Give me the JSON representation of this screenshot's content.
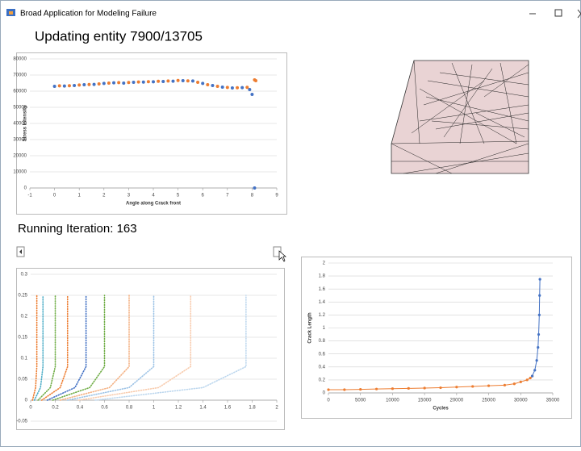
{
  "window": {
    "title": "Broad Application for Modeling Failure"
  },
  "status": "Updating entity 7900/13705",
  "iteration": "Running Iteration: 163",
  "chart_data": [
    {
      "type": "scatter",
      "xlabel": "Angle along Crack front",
      "ylabel": "Stress Intensity",
      "xlim": [
        -1,
        9
      ],
      "xticks": [
        -1,
        0,
        1,
        2,
        3,
        4,
        5,
        6,
        7,
        8,
        9
      ],
      "ylim": [
        0,
        80000
      ],
      "yticks": [
        0,
        10000,
        20000,
        30000,
        40000,
        50000,
        60000,
        70000,
        80000
      ],
      "grid": true,
      "series": [
        {
          "color": "#4472c4",
          "x": [
            0,
            0.4,
            0.8,
            1.2,
            1.6,
            2,
            2.4,
            2.8,
            3.2,
            3.6,
            4,
            4.4,
            4.8,
            5.2,
            5.6,
            6,
            6.4,
            6.8,
            7.2,
            7.6,
            7.9,
            8,
            8.1
          ],
          "values": [
            63000,
            63200,
            63500,
            64000,
            64200,
            64800,
            65200,
            65000,
            65500,
            65600,
            65800,
            66000,
            66200,
            66500,
            66300,
            64800,
            63500,
            62500,
            62000,
            62200,
            61000,
            58000,
            0
          ]
        },
        {
          "color": "#ed7d31",
          "x": [
            0.2,
            0.6,
            1,
            1.4,
            1.8,
            2.2,
            2.6,
            3,
            3.4,
            3.8,
            4.2,
            4.6,
            5,
            5.4,
            5.8,
            6.2,
            6.6,
            7,
            7.4,
            7.8,
            8.1,
            8.15
          ],
          "values": [
            63300,
            63400,
            63800,
            64100,
            64500,
            65000,
            65300,
            65400,
            65700,
            65900,
            66100,
            66300,
            66600,
            66400,
            65500,
            64000,
            63000,
            62300,
            62100,
            62400,
            67000,
            66500
          ]
        }
      ]
    },
    {
      "type": "line",
      "markers": false,
      "dotted": true,
      "xlim": [
        0,
        2
      ],
      "xticks": [
        0,
        0.2,
        0.4,
        0.6,
        0.8,
        1,
        1.2,
        1.4,
        1.6,
        1.8,
        2
      ],
      "ylim": [
        -0.05,
        0.3
      ],
      "yticks": [
        -0.05,
        0,
        0.05,
        0.1,
        0.15,
        0.2,
        0.25,
        0.3
      ],
      "grid": true,
      "series": [
        {
          "color": "#ed7d31",
          "x": [
            0.015,
            0.04,
            0.05,
            0.05,
            0.05
          ],
          "values": [
            0,
            0.03,
            0.08,
            0.16,
            0.25
          ]
        },
        {
          "color": "#4bacc6",
          "x": [
            0.03,
            0.08,
            0.1,
            0.1,
            0.1
          ],
          "values": [
            0,
            0.03,
            0.08,
            0.16,
            0.25
          ]
        },
        {
          "color": "#70ad47",
          "x": [
            0.06,
            0.16,
            0.2,
            0.2,
            0.2
          ],
          "values": [
            0,
            0.03,
            0.08,
            0.16,
            0.25
          ]
        },
        {
          "color": "#ed7d31",
          "x": [
            0.09,
            0.24,
            0.3,
            0.3,
            0.3
          ],
          "values": [
            0,
            0.03,
            0.08,
            0.16,
            0.25
          ]
        },
        {
          "color": "#4472c4",
          "x": [
            0.135,
            0.36,
            0.45,
            0.45,
            0.45
          ],
          "values": [
            0,
            0.03,
            0.08,
            0.16,
            0.25
          ]
        },
        {
          "color": "#70ad47",
          "x": [
            0.18,
            0.48,
            0.6,
            0.6,
            0.6
          ],
          "values": [
            0,
            0.03,
            0.08,
            0.16,
            0.25
          ]
        },
        {
          "color": "#f4b183",
          "x": [
            0.24,
            0.64,
            0.8,
            0.8,
            0.8
          ],
          "values": [
            0,
            0.03,
            0.08,
            0.16,
            0.25
          ]
        },
        {
          "color": "#9dc3e6",
          "x": [
            0.3,
            0.8,
            1,
            1,
            1
          ],
          "values": [
            0,
            0.03,
            0.08,
            0.16,
            0.25
          ]
        },
        {
          "color": "#f8cbad",
          "x": [
            0.39,
            1.04,
            1.3,
            1.3,
            1.3
          ],
          "values": [
            0,
            0.03,
            0.08,
            0.16,
            0.25
          ]
        },
        {
          "color": "#bdd7ee",
          "x": [
            0.525,
            1.4,
            1.75,
            1.75,
            1.75
          ],
          "values": [
            0,
            0.03,
            0.08,
            0.16,
            0.25
          ]
        }
      ]
    },
    {
      "type": "line",
      "markers": true,
      "dotted": false,
      "xlabel": "Cycles",
      "ylabel": "Crack Length",
      "xlim": [
        0,
        35000
      ],
      "xticks": [
        0,
        5000,
        10000,
        15000,
        20000,
        25000,
        30000,
        35000
      ],
      "ylim": [
        0,
        2
      ],
      "yticks": [
        0,
        0.2,
        0.4,
        0.6,
        0.8,
        1,
        1.2,
        1.4,
        1.6,
        1.8,
        2
      ],
      "grid": true,
      "series": [
        {
          "color": "#ed7d31",
          "x": [
            0,
            2500,
            5000,
            7500,
            10000,
            12500,
            15000,
            17500,
            20000,
            22500,
            25000,
            27500,
            29000,
            30000,
            31000,
            31500,
            31800
          ],
          "values": [
            0.05,
            0.05,
            0.055,
            0.06,
            0.065,
            0.07,
            0.075,
            0.08,
            0.09,
            0.1,
            0.11,
            0.12,
            0.14,
            0.17,
            0.2,
            0.23,
            0.26
          ]
        },
        {
          "color": "#4472c4",
          "x": [
            31800,
            32200,
            32500,
            32700,
            32800,
            32900,
            32950,
            33000
          ],
          "values": [
            0.26,
            0.35,
            0.5,
            0.7,
            0.9,
            1.2,
            1.5,
            1.75
          ]
        }
      ]
    }
  ]
}
